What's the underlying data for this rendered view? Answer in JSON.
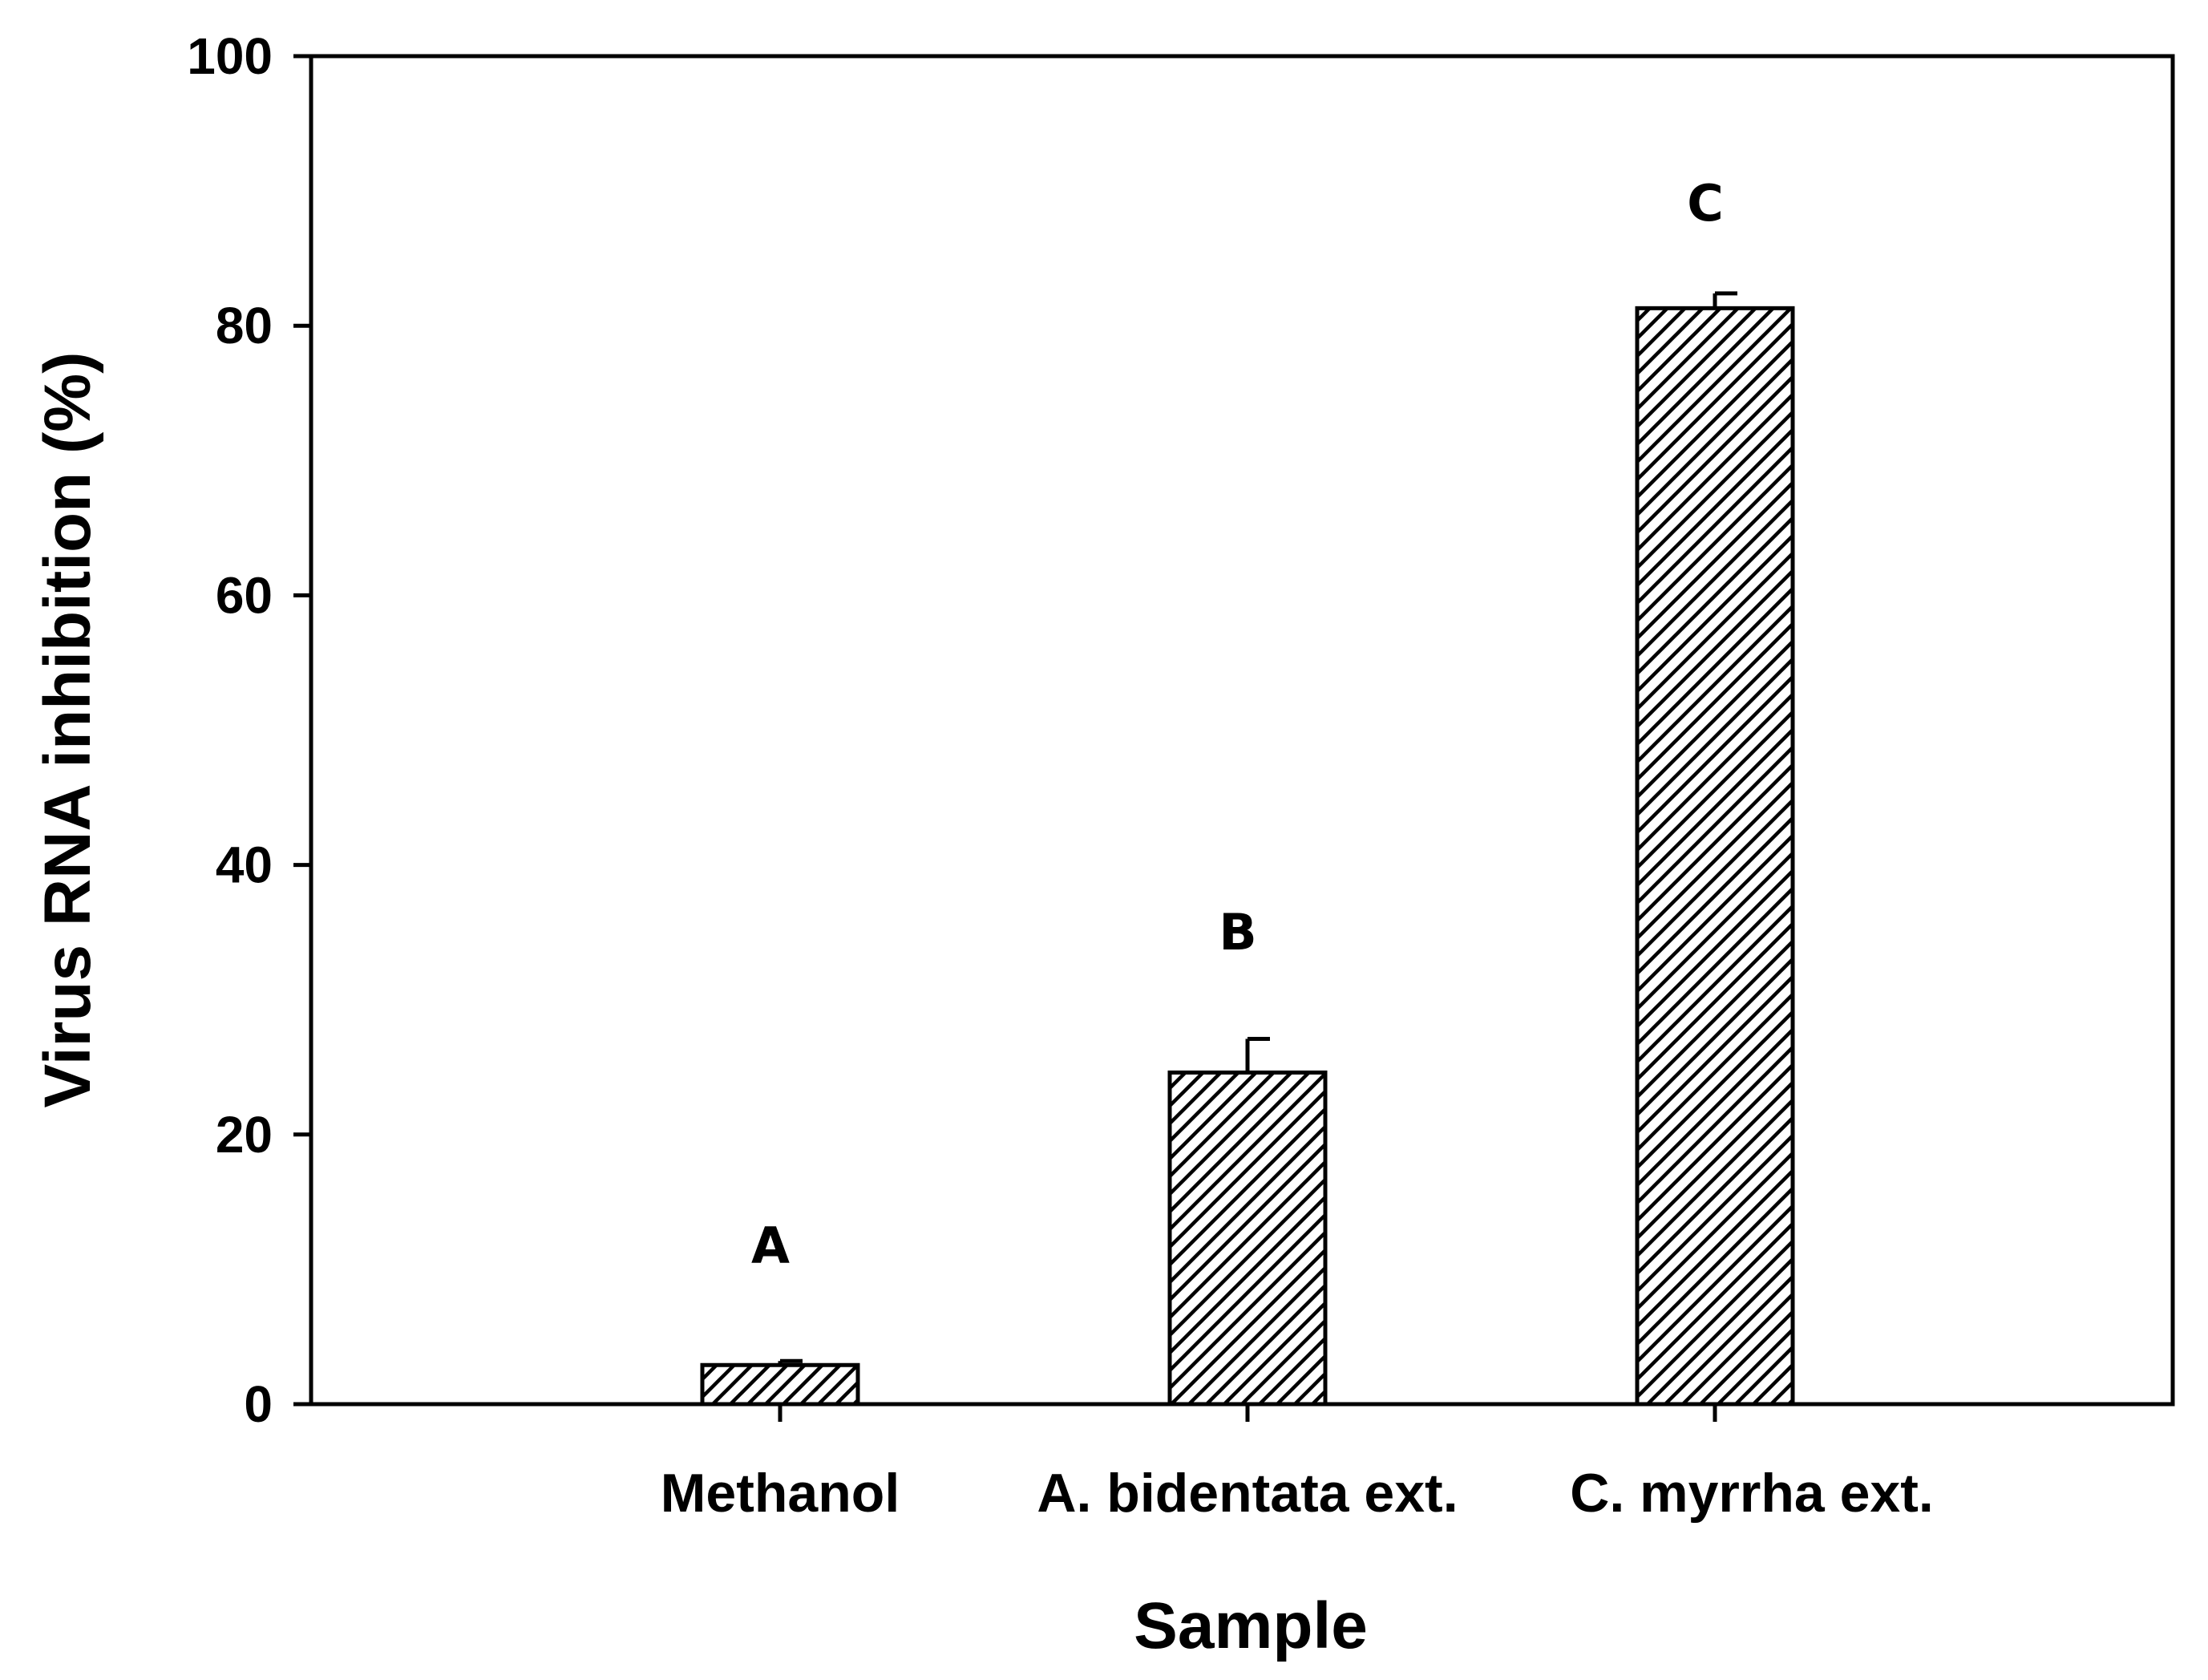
{
  "chart_data": {
    "type": "bar",
    "title": "",
    "xlabel": "Sample",
    "ylabel": "Virus RNA inhibition (%)",
    "ylim": [
      0,
      100
    ],
    "yticks": [
      0,
      20,
      40,
      60,
      80,
      100
    ],
    "grid": false,
    "categories": [
      "Methanol",
      "A. bidentata ext.",
      "C. myrrha ext."
    ],
    "values": [
      2.9,
      24.6,
      81.3
    ],
    "errors": [
      0.3,
      2.5,
      1.1
    ],
    "annotations": [
      "A",
      "B",
      "C"
    ],
    "bar_fill": "#ffffff",
    "bar_hatch_color": "#000000"
  }
}
